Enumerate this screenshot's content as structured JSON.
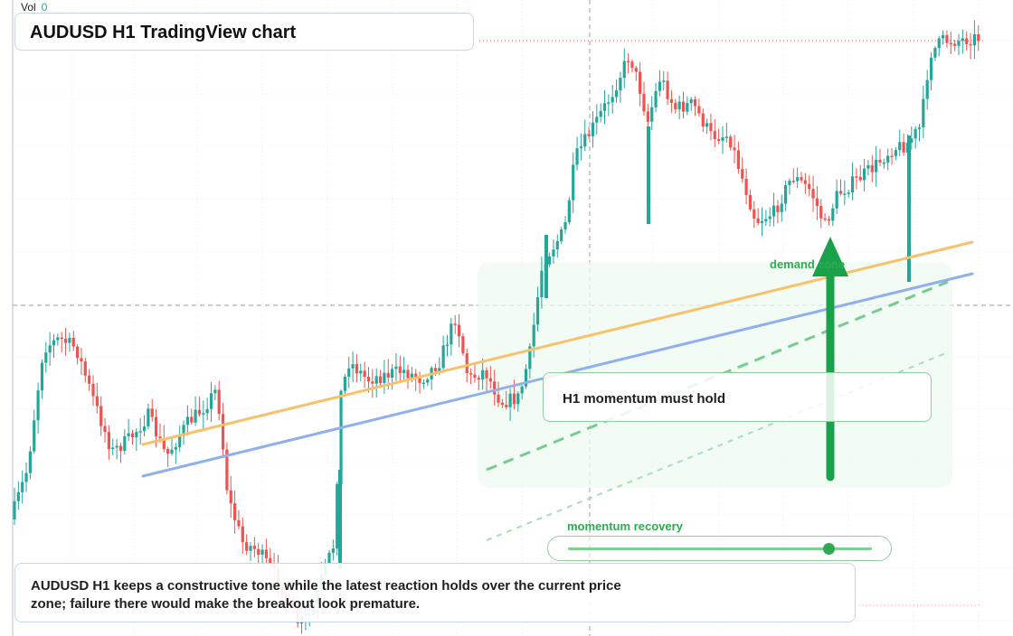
{
  "header": {
    "vol_label": "Vol",
    "vol_value": "0",
    "title": "AUDUSD H1 TradingView chart"
  },
  "annotations": {
    "demand_zone": "demand zone",
    "momentum_callout": "H1 momentum must hold",
    "recovery_label": "momentum recovery",
    "recovery_level": 0.86
  },
  "note": {
    "text": "AUDUSD H1 keeps a constructive tone while the latest reaction holds over the current price zone; failure there would make the breakout look premature."
  },
  "colors": {
    "up": "#26a69a",
    "down": "#ef5350",
    "orange_line": "#f6c26b",
    "blue_line": "#8fb0ec",
    "accent_green": "#2eaa52"
  },
  "chart_data": {
    "type": "candlestick",
    "symbol": "AUDUSD",
    "timeframe": "H1"
  }
}
